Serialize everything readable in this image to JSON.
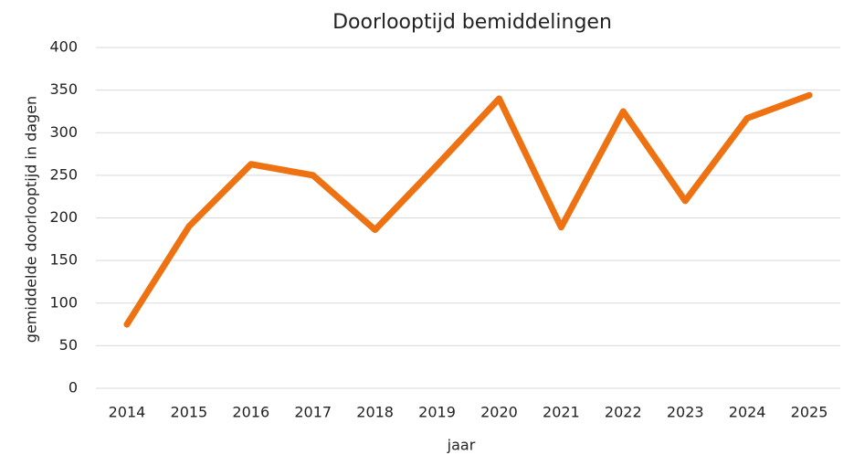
{
  "chart_data": {
    "type": "line",
    "title": "Doorlooptijd bemiddelingen",
    "x_label": "jaar",
    "y_label": "gemiddelde doorlooptijd in dagen",
    "categories": [
      "2014",
      "2015",
      "2016",
      "2017",
      "2018",
      "2019",
      "2020",
      "2021",
      "2022",
      "2023",
      "2024",
      "2025"
    ],
    "series": [
      {
        "name": "doorlooptijd",
        "color": "#ee7212",
        "values": [
          75,
          190,
          263,
          250,
          186,
          262,
          340,
          189,
          325,
          220,
          317,
          344
        ]
      }
    ],
    "ylim": [
      0,
      400
    ],
    "yticks": [
      0,
      50,
      100,
      150,
      200,
      250,
      300,
      350,
      400
    ],
    "grid": true
  }
}
